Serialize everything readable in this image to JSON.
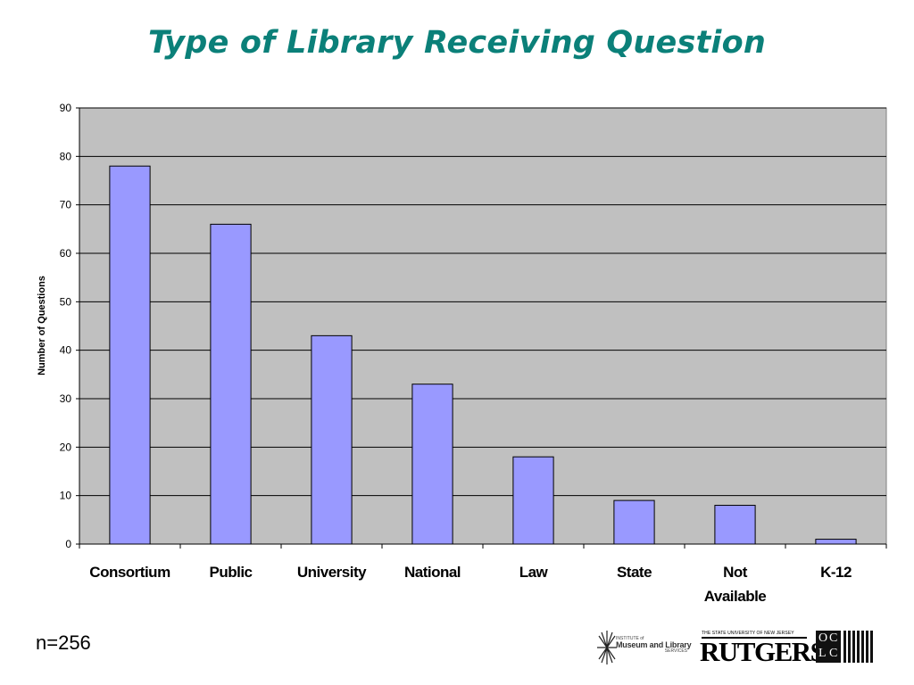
{
  "slide": {
    "title": "Type of Library Receiving Question",
    "footnote": "n=256"
  },
  "chart_data": {
    "type": "bar",
    "title": "Type of Library Receiving Question",
    "xlabel": "",
    "ylabel": "Number of Questions",
    "categories": [
      "Consortium",
      "Public",
      "University",
      "National",
      "Law",
      "State",
      "Not Available",
      "K-12"
    ],
    "category_lines": [
      [
        "Consortium"
      ],
      [
        "Public"
      ],
      [
        "University"
      ],
      [
        "National"
      ],
      [
        "Law"
      ],
      [
        "State"
      ],
      [
        "Not",
        "Available"
      ],
      [
        "K-12"
      ]
    ],
    "values": [
      78,
      66,
      43,
      33,
      18,
      9,
      8,
      1
    ],
    "ylim": [
      0,
      90
    ],
    "yticks": [
      0,
      10,
      20,
      30,
      40,
      50,
      60,
      70,
      80,
      90
    ],
    "grid": true,
    "legend": "none",
    "colors": {
      "bar": "#9999ff",
      "plot_background": "#c0c0c0",
      "gridline": "#000000",
      "title": "#0b8079"
    }
  },
  "logos": {
    "imls": {
      "line1": "INSTITUTE of",
      "line2": "Museum and Library",
      "line3": "SERVICES",
      "icon": "starburst-icon"
    },
    "rutgers": {
      "top": "THE STATE UNIVERSITY OF NEW JERSEY",
      "word": "RUTGERS"
    },
    "oclc": {
      "letters": [
        "O",
        "C",
        "L",
        "C"
      ],
      "icon": "barcode-stripes-icon"
    }
  }
}
